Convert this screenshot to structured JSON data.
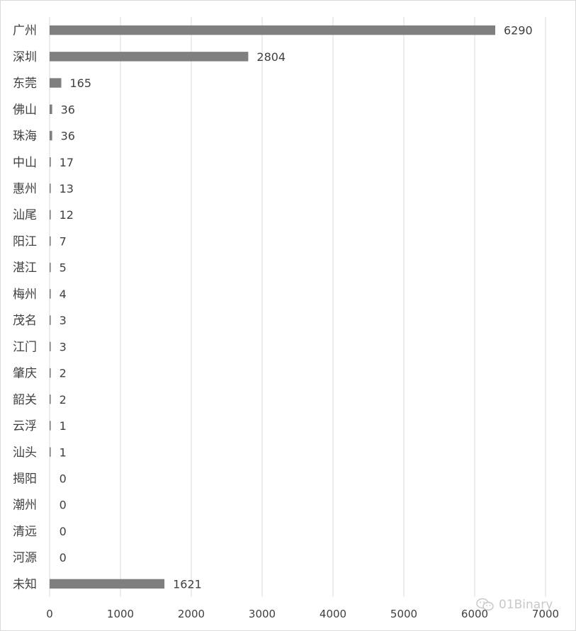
{
  "chart_data": {
    "type": "bar",
    "orientation": "horizontal",
    "categories": [
      "广州",
      "深圳",
      "东莞",
      "佛山",
      "珠海",
      "中山",
      "惠州",
      "汕尾",
      "阳江",
      "湛江",
      "梅州",
      "茂名",
      "江门",
      "肇庆",
      "韶关",
      "云浮",
      "汕头",
      "揭阳",
      "潮州",
      "清远",
      "河源",
      "未知"
    ],
    "values": [
      6290,
      2804,
      165,
      36,
      36,
      17,
      13,
      12,
      7,
      5,
      4,
      3,
      3,
      2,
      2,
      1,
      1,
      0,
      0,
      0,
      0,
      1621
    ],
    "xlim": [
      0,
      7000
    ],
    "xticks": [
      0,
      1000,
      2000,
      3000,
      4000,
      5000,
      6000,
      7000
    ],
    "grid": true,
    "data_labels": true,
    "bar_color": "#7f7f7f",
    "grid_color": "#d9d9d9",
    "label_color": "#404040"
  },
  "watermark": {
    "text": "01Binary",
    "icon": "wechat-icon",
    "color": "#c8c8c8"
  }
}
